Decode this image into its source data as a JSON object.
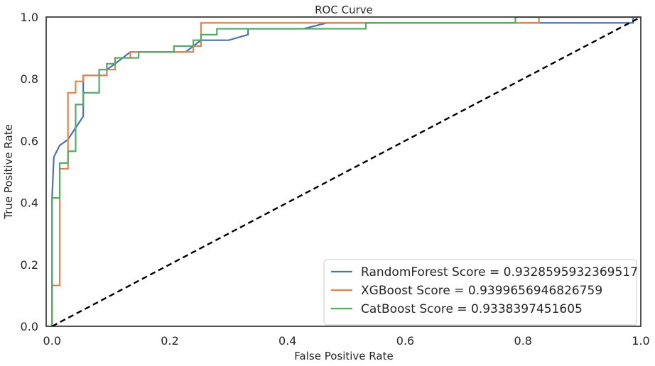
{
  "chart_data": {
    "type": "line",
    "title": "ROC Curve",
    "xlabel": "False Positive Rate",
    "ylabel": "True Positive Rate",
    "xlim": [
      -0.01,
      1.0
    ],
    "ylim": [
      0.0,
      1.0
    ],
    "xticks": [
      "0.0",
      "0.2",
      "0.4",
      "0.6",
      "0.8",
      "1.0"
    ],
    "yticks": [
      "0.0",
      "0.2",
      "0.4",
      "0.6",
      "0.8",
      "1.0"
    ],
    "grid": false,
    "legend_position": "lower-right",
    "series": [
      {
        "name": "RandomForest Score = 0.9328595932369517",
        "color": "#4c72b0",
        "x": [
          0.0,
          0.0,
          0.003,
          0.013,
          0.027,
          0.04,
          0.053,
          0.053,
          0.093,
          0.093,
          0.107,
          0.133,
          0.147,
          0.227,
          0.24,
          0.253,
          0.3,
          0.333,
          0.333,
          0.427,
          0.467,
          0.52,
          0.987,
          0.987,
          1.0
        ],
        "y": [
          0.0,
          0.415,
          0.547,
          0.585,
          0.604,
          0.642,
          0.679,
          0.811,
          0.811,
          0.83,
          0.849,
          0.887,
          0.887,
          0.887,
          0.906,
          0.925,
          0.925,
          0.943,
          0.962,
          0.962,
          0.981,
          0.981,
          0.981,
          1.0,
          1.0
        ]
      },
      {
        "name": "XGBoost Score = 0.9399656946826759",
        "color": "#dd8452",
        "x": [
          0.0,
          0.0,
          0.013,
          0.013,
          0.027,
          0.027,
          0.04,
          0.04,
          0.053,
          0.053,
          0.093,
          0.093,
          0.107,
          0.107,
          0.133,
          0.133,
          0.24,
          0.24,
          0.253,
          0.253,
          0.827,
          0.827,
          1.0
        ],
        "y": [
          0.0,
          0.132,
          0.132,
          0.509,
          0.509,
          0.755,
          0.755,
          0.792,
          0.792,
          0.811,
          0.811,
          0.83,
          0.83,
          0.868,
          0.868,
          0.887,
          0.887,
          0.906,
          0.906,
          0.981,
          0.981,
          1.0,
          1.0
        ]
      },
      {
        "name": "CatBoost Score = 0.9338397451605",
        "color": "#55a868",
        "x": [
          0.0,
          0.0,
          0.013,
          0.013,
          0.027,
          0.027,
          0.04,
          0.04,
          0.053,
          0.053,
          0.08,
          0.08,
          0.093,
          0.093,
          0.107,
          0.107,
          0.147,
          0.147,
          0.207,
          0.207,
          0.24,
          0.24,
          0.253,
          0.253,
          0.28,
          0.28,
          0.333,
          0.333,
          0.533,
          0.533,
          0.787,
          0.787,
          1.0
        ],
        "y": [
          0.0,
          0.415,
          0.415,
          0.528,
          0.528,
          0.566,
          0.566,
          0.717,
          0.717,
          0.755,
          0.755,
          0.83,
          0.83,
          0.849,
          0.849,
          0.868,
          0.868,
          0.887,
          0.887,
          0.906,
          0.906,
          0.925,
          0.925,
          0.943,
          0.943,
          0.962,
          0.962,
          0.962,
          0.962,
          0.981,
          0.981,
          1.0,
          1.0
        ]
      },
      {
        "name": "",
        "color": "#000000",
        "dashed": true,
        "x": [
          0.0,
          1.0
        ],
        "y": [
          0.0,
          1.0
        ]
      }
    ]
  }
}
